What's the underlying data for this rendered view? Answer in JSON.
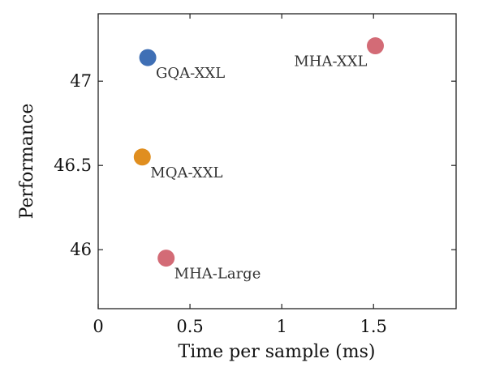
{
  "chart_data": {
    "type": "scatter",
    "xlabel": "Time per sample (ms)",
    "ylabel": "Performance",
    "xlim": [
      0,
      1.95
    ],
    "ylim": [
      45.65,
      47.4
    ],
    "xticks": [
      0,
      0.5,
      1,
      1.5
    ],
    "xtick_labels": [
      "0",
      "0.5",
      "1",
      "1.5"
    ],
    "yticks": [
      46,
      46.5,
      47
    ],
    "ytick_labels": [
      "46",
      "46.5",
      "47"
    ],
    "grid": false,
    "points": [
      {
        "label": "GQA-XXL",
        "x": 0.27,
        "y": 47.14,
        "color": "#3f6fb5",
        "label_side": "right"
      },
      {
        "label": "MHA-XXL",
        "x": 1.51,
        "y": 47.21,
        "color": "#d36b76",
        "label_side": "left"
      },
      {
        "label": "MQA-XXL",
        "x": 0.24,
        "y": 46.55,
        "color": "#e08e1f",
        "label_side": "right"
      },
      {
        "label": "MHA-Large",
        "x": 0.37,
        "y": 45.95,
        "color": "#d36b76",
        "label_side": "right"
      }
    ]
  }
}
